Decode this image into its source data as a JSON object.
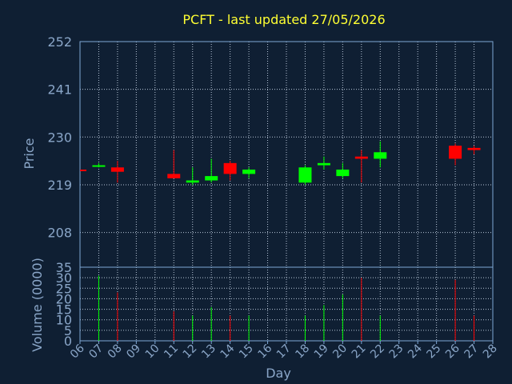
{
  "chart_data": {
    "type": "candlestick",
    "title": "PCFT - last updated 27/05/2026",
    "xlabel": "Day",
    "categories": [
      "06",
      "07",
      "08",
      "09",
      "10",
      "11",
      "12",
      "13",
      "14",
      "15",
      "16",
      "17",
      "18",
      "19",
      "20",
      "21",
      "22",
      "23",
      "24",
      "25",
      "26",
      "27",
      "28"
    ],
    "price_panel": {
      "ylabel": "Price",
      "ylim": [
        200,
        252
      ],
      "yticks": [
        208,
        219,
        230,
        241,
        252
      ],
      "grid": true,
      "candles": [
        {
          "day": "06",
          "open": 222.5,
          "high": 222.5,
          "low": 222.5,
          "close": 222.5,
          "direction": "down"
        },
        {
          "day": "07",
          "open": 223.5,
          "high": 224.0,
          "low": 223.0,
          "close": 223.5,
          "direction": "up"
        },
        {
          "day": "08",
          "open": 223.0,
          "high": 224.5,
          "low": 219.5,
          "close": 222.0,
          "direction": "down"
        },
        {
          "day": "11",
          "open": 221.5,
          "high": 227.0,
          "low": 220.5,
          "close": 220.5,
          "direction": "down"
        },
        {
          "day": "12",
          "open": 219.5,
          "high": 223.0,
          "low": 219.0,
          "close": 220.0,
          "direction": "up"
        },
        {
          "day": "13",
          "open": 220.0,
          "high": 225.0,
          "low": 219.5,
          "close": 221.0,
          "direction": "up"
        },
        {
          "day": "14",
          "open": 224.0,
          "high": 224.5,
          "low": 220.0,
          "close": 221.5,
          "direction": "down"
        },
        {
          "day": "15",
          "open": 221.5,
          "high": 223.0,
          "low": 220.5,
          "close": 222.5,
          "direction": "up"
        },
        {
          "day": "18",
          "open": 219.5,
          "high": 223.5,
          "low": 219.0,
          "close": 223.0,
          "direction": "up"
        },
        {
          "day": "19",
          "open": 223.5,
          "high": 225.5,
          "low": 222.5,
          "close": 224.0,
          "direction": "up"
        },
        {
          "day": "20",
          "open": 221.0,
          "high": 224.0,
          "low": 220.5,
          "close": 222.5,
          "direction": "up"
        },
        {
          "day": "21",
          "open": 225.5,
          "high": 227.0,
          "low": 219.5,
          "close": 225.0,
          "direction": "down"
        },
        {
          "day": "22",
          "open": 225.0,
          "high": 229.0,
          "low": 223.0,
          "close": 226.5,
          "direction": "up"
        },
        {
          "day": "26",
          "open": 228.0,
          "high": 228.5,
          "low": 223.5,
          "close": 225.0,
          "direction": "down"
        },
        {
          "day": "27",
          "open": 227.5,
          "high": 228.0,
          "low": 226.0,
          "close": 227.0,
          "direction": "down"
        }
      ]
    },
    "volume_panel": {
      "ylabel": "Volume (0000)",
      "ylim": [
        0,
        35
      ],
      "yticks": [
        0,
        5,
        10,
        15,
        20,
        25,
        30,
        35
      ],
      "grid": true,
      "bars": [
        {
          "day": "07",
          "value": 31,
          "direction": "up"
        },
        {
          "day": "08",
          "value": 23,
          "direction": "down"
        },
        {
          "day": "11",
          "value": 14,
          "direction": "down"
        },
        {
          "day": "12",
          "value": 12,
          "direction": "up"
        },
        {
          "day": "13",
          "value": 16,
          "direction": "up"
        },
        {
          "day": "14",
          "value": 12,
          "direction": "down"
        },
        {
          "day": "15",
          "value": 12,
          "direction": "up"
        },
        {
          "day": "18",
          "value": 12,
          "direction": "up"
        },
        {
          "day": "19",
          "value": 17,
          "direction": "up"
        },
        {
          "day": "20",
          "value": 22,
          "direction": "up"
        },
        {
          "day": "21",
          "value": 30,
          "direction": "down"
        },
        {
          "day": "22",
          "value": 12,
          "direction": "up"
        },
        {
          "day": "26",
          "value": 29,
          "direction": "down"
        },
        {
          "day": "27",
          "value": 12,
          "direction": "down"
        }
      ]
    },
    "colors": {
      "background": "#0f1f33",
      "up": "#00ff00",
      "down": "#ff0000",
      "title": "#ffff33",
      "axis_text": "#8aa6c8",
      "frame": "#7fa8d6",
      "grid": "#b8c6d8"
    }
  }
}
